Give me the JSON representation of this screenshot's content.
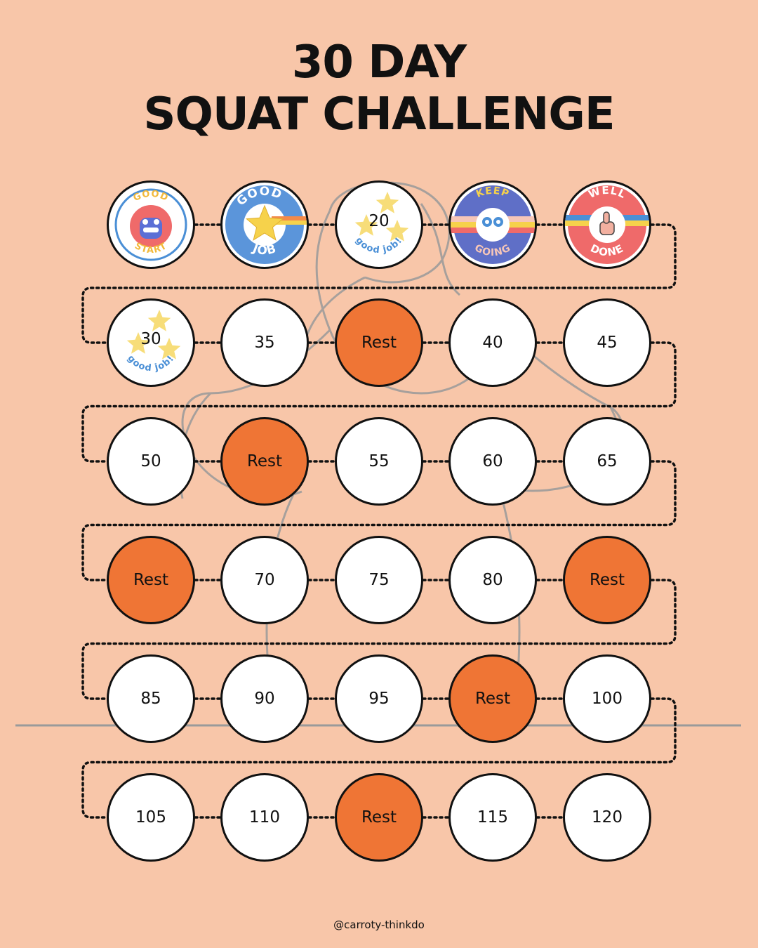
{
  "title": {
    "line1": "30 DAY",
    "line2": "SQUAT CHALLENGE"
  },
  "footer": {
    "handle": "@carroty-thinkdo"
  },
  "colors": {
    "background": "#f8c6a9",
    "rest": "#ef7535",
    "day": "#ffffff",
    "outline": "#111111",
    "path": "#111111",
    "figure": "#9a9a9a"
  },
  "days": [
    {
      "kind": "badge",
      "badge": "good-start-badge",
      "words": [
        "GOOD",
        "START"
      ]
    },
    {
      "kind": "badge",
      "badge": "good-job-star-badge",
      "words": [
        "GOOD",
        "JOB"
      ]
    },
    {
      "kind": "stars",
      "label": "20",
      "caption": "good job!"
    },
    {
      "kind": "badge",
      "badge": "keep-going-badge",
      "words": [
        "KEEP",
        "GOING"
      ]
    },
    {
      "kind": "badge",
      "badge": "well-done-badge",
      "words": [
        "WELL",
        "DONE"
      ]
    },
    {
      "kind": "stars",
      "label": "30",
      "caption": "good job!"
    },
    {
      "kind": "count",
      "label": "35"
    },
    {
      "kind": "rest",
      "label": "Rest"
    },
    {
      "kind": "count",
      "label": "40"
    },
    {
      "kind": "count",
      "label": "45"
    },
    {
      "kind": "count",
      "label": "50"
    },
    {
      "kind": "rest",
      "label": "Rest"
    },
    {
      "kind": "count",
      "label": "55"
    },
    {
      "kind": "count",
      "label": "60"
    },
    {
      "kind": "count",
      "label": "65"
    },
    {
      "kind": "rest",
      "label": "Rest"
    },
    {
      "kind": "count",
      "label": "70"
    },
    {
      "kind": "count",
      "label": "75"
    },
    {
      "kind": "count",
      "label": "80"
    },
    {
      "kind": "rest",
      "label": "Rest"
    },
    {
      "kind": "count",
      "label": "85"
    },
    {
      "kind": "count",
      "label": "90"
    },
    {
      "kind": "count",
      "label": "95"
    },
    {
      "kind": "rest",
      "label": "Rest"
    },
    {
      "kind": "count",
      "label": "100"
    },
    {
      "kind": "count",
      "label": "105"
    },
    {
      "kind": "count",
      "label": "110"
    },
    {
      "kind": "rest",
      "label": "Rest"
    },
    {
      "kind": "count",
      "label": "115"
    },
    {
      "kind": "count",
      "label": "120"
    }
  ]
}
